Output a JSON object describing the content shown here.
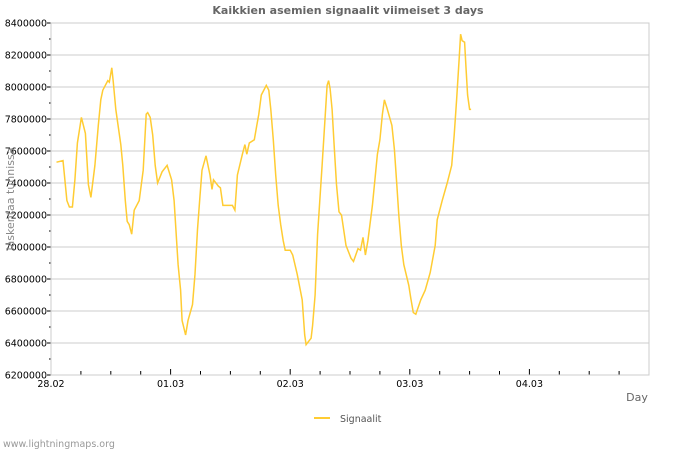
{
  "chart_data": {
    "type": "line",
    "title": "Kaikkien asemien signaalit viimeiset 3 days",
    "xlabel": "Day",
    "ylabel": "laskentaa tunnissa",
    "xlim_hours": [
      0,
      120
    ],
    "ylim": [
      6200000,
      8400000
    ],
    "x_ticks": [
      {
        "hours": 0,
        "label": "28.02"
      },
      {
        "hours": 24,
        "label": "01.03"
      },
      {
        "hours": 48,
        "label": "02.03"
      },
      {
        "hours": 72,
        "label": "03.03"
      },
      {
        "hours": 96,
        "label": "04.03"
      }
    ],
    "y_ticks": [
      6200000,
      6400000,
      6600000,
      6800000,
      7000000,
      7200000,
      7400000,
      7600000,
      7800000,
      8000000,
      8200000,
      8400000
    ],
    "grid": true,
    "legend_position": "bottom-center",
    "series": [
      {
        "name": "Signaalit",
        "color": "#ffcc33",
        "x_hours": [
          1.1,
          2.4,
          3.2,
          3.7,
          4.3,
          4.8,
          5.3,
          6.1,
          6.9,
          7.5,
          8.0,
          8.8,
          9.5,
          10.0,
          10.4,
          11.4,
          11.7,
          12.2,
          12.5,
          13.0,
          14.0,
          14.4,
          14.9,
          15.3,
          15.7,
          16.2,
          16.7,
          17.7,
          18.5,
          19.1,
          19.4,
          19.9,
          20.4,
          20.9,
          21.4,
          22.3,
          23.3,
          24.2,
          24.7,
          25.5,
          26.0,
          26.3,
          27.0,
          27.5,
          28.4,
          28.9,
          29.4,
          29.9,
          30.3,
          31.1,
          31.9,
          32.3,
          32.6,
          33.6,
          34.0,
          34.5,
          35.5,
          36.4,
          36.9,
          37.4,
          38.4,
          38.9,
          39.3,
          39.8,
          40.8,
          41.3,
          41.7,
          42.2,
          43.2,
          43.7,
          44.1,
          44.6,
          45.1,
          45.6,
          46.1,
          46.6,
          47.0,
          48.0,
          48.5,
          49.4,
          50.4,
          50.9,
          51.2,
          52.2,
          52.5,
          53.0,
          53.5,
          54.4,
          54.9,
          55.4,
          55.7,
          56.0,
          56.4,
          56.8,
          57.3,
          57.8,
          58.3,
          59.2,
          60.2,
          60.7,
          61.6,
          62.1,
          62.6,
          63.1,
          63.6,
          64.5,
          65.5,
          66.0,
          66.5,
          66.9,
          67.4,
          68.4,
          68.9,
          69.4,
          69.8,
          70.3,
          70.8,
          71.8,
          72.2,
          72.7,
          73.2,
          74.2,
          75.1,
          76.1,
          77.1,
          77.5,
          78.5,
          79.5,
          80.4,
          80.9,
          81.4,
          81.9,
          82.2,
          82.5,
          83.0,
          83.3,
          83.6,
          84.0,
          84.3
        ],
        "values": [
          7530000,
          7540000,
          7290000,
          7250000,
          7250000,
          7420000,
          7650000,
          7810000,
          7710000,
          7390000,
          7310000,
          7510000,
          7760000,
          7920000,
          7980000,
          8040000,
          8030000,
          8120000,
          8030000,
          7860000,
          7640000,
          7510000,
          7290000,
          7160000,
          7140000,
          7080000,
          7230000,
          7290000,
          7480000,
          7830000,
          7840000,
          7810000,
          7700000,
          7510000,
          7400000,
          7470000,
          7510000,
          7420000,
          7290000,
          6890000,
          6730000,
          6540000,
          6450000,
          6540000,
          6640000,
          6830000,
          7110000,
          7320000,
          7480000,
          7570000,
          7450000,
          7360000,
          7420000,
          7380000,
          7370000,
          7260000,
          7260000,
          7260000,
          7230000,
          7450000,
          7580000,
          7640000,
          7580000,
          7650000,
          7670000,
          7760000,
          7830000,
          7950000,
          8010000,
          7980000,
          7860000,
          7670000,
          7450000,
          7260000,
          7140000,
          7040000,
          6980000,
          6980000,
          6950000,
          6830000,
          6670000,
          6450000,
          6390000,
          6430000,
          6510000,
          6700000,
          7080000,
          7510000,
          7760000,
          8010000,
          8040000,
          7990000,
          7860000,
          7640000,
          7390000,
          7220000,
          7200000,
          7010000,
          6930000,
          6910000,
          6990000,
          6980000,
          7060000,
          6950000,
          7040000,
          7260000,
          7580000,
          7670000,
          7830000,
          7920000,
          7870000,
          7760000,
          7610000,
          7390000,
          7200000,
          7010000,
          6890000,
          6760000,
          6680000,
          6590000,
          6580000,
          6670000,
          6730000,
          6840000,
          7010000,
          7170000,
          7290000,
          7400000,
          7510000,
          7700000,
          7920000,
          8170000,
          8330000,
          8290000,
          8280000,
          8110000,
          7950000,
          7860000,
          7860000
        ]
      }
    ]
  },
  "footer": "www.lightningmaps.org",
  "colors": {
    "grid": "#cccccc",
    "text": "#333333",
    "title": "#666666"
  }
}
